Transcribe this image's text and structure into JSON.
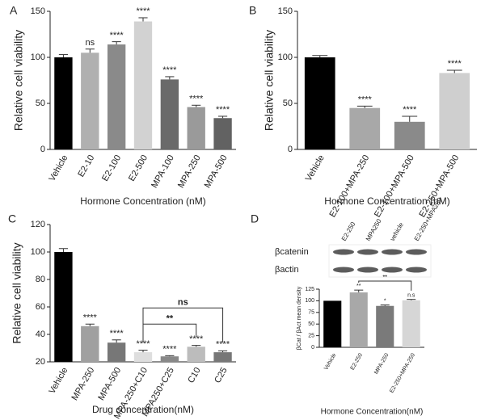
{
  "chart_data": [
    {
      "type": "bar",
      "panel_label": "A",
      "y_label": "Relative cell viability",
      "x_label": "Hormone Concentration (nM)",
      "categories": [
        "Vehicle",
        "E2-10",
        "E2-100",
        "E2-500",
        "MPA-100",
        "MPA-250",
        "MPA-500"
      ],
      "values": [
        100,
        105,
        114,
        139,
        76,
        46,
        34
      ],
      "errors": [
        3,
        4,
        3,
        4,
        3,
        2,
        2
      ],
      "colors": [
        "#000000",
        "#b0b0b0",
        "#8a8a8a",
        "#d2d2d2",
        "#6a6a6a",
        "#9a9a9a",
        "#626262"
      ],
      "annotations": [
        null,
        "ns",
        "****",
        "****",
        "****",
        "****",
        "****"
      ],
      "ylim": [
        0,
        150
      ],
      "yticks": [
        0,
        50,
        100,
        150
      ]
    },
    {
      "type": "bar",
      "panel_label": "B",
      "y_label": "Relative cell viability",
      "x_label": "Hormone Concentration (nM)",
      "categories": [
        "Vehicle",
        "E2-100+MPA-250",
        "E2-100+MPA-500",
        "E2-250+MPA-500"
      ],
      "values": [
        100,
        45,
        30,
        83
      ],
      "errors": [
        2,
        2,
        6,
        3
      ],
      "colors": [
        "#000000",
        "#a8a8a8",
        "#8a8a8a",
        "#cfcfcf"
      ],
      "annotations": [
        null,
        "****",
        "****",
        "****"
      ],
      "ylim": [
        0,
        150
      ],
      "yticks": [
        0,
        50,
        100,
        150
      ]
    },
    {
      "type": "bar",
      "panel_label": "C",
      "y_label": "Relative cell viability",
      "x_label": "Drug concentration(nM)",
      "categories": [
        "Vehicle",
        "MPA-250",
        "MPA-500",
        "MPA-250+C10",
        "MPA250+C25",
        "C10",
        "C25"
      ],
      "values": [
        100,
        46,
        34,
        27,
        24,
        31,
        27
      ],
      "errors": [
        2.5,
        1.5,
        2,
        1.5,
        0.5,
        1,
        1
      ],
      "colors": [
        "#000000",
        "#a0a0a0",
        "#777777",
        "#dedede",
        "#888888",
        "#bcbcbc",
        "#777777"
      ],
      "annotations": [
        null,
        "****",
        "****",
        "****",
        "****",
        "****",
        "****"
      ],
      "brackets": [
        {
          "from": 3,
          "to": 6,
          "label": "ns"
        },
        {
          "from": 3,
          "to": 5,
          "label": "**"
        }
      ],
      "ylim": [
        20,
        120
      ],
      "yticks": [
        20,
        40,
        60,
        80,
        100,
        120
      ]
    },
    {
      "type": "bar",
      "panel_label": "D",
      "y_label": "βCat / βAct mean density",
      "x_label": "Hormone Concentration(nM)",
      "categories": [
        "Vehicle",
        "E2-250",
        "MPA-250",
        "E2-250+MPA-250"
      ],
      "values": [
        100,
        118,
        89,
        101
      ],
      "errors": [
        null,
        5,
        2,
        2
      ],
      "colors": [
        "#000000",
        "#a8a8a8",
        "#7a7a7a",
        "#d6d6d6"
      ],
      "annotations": [
        null,
        "**",
        "*",
        "n.s"
      ],
      "brackets": [
        {
          "from": 1,
          "to": 3,
          "label": "**"
        }
      ],
      "blot": {
        "lanes": [
          "E2-250",
          "MPA250",
          "vehicle",
          "E2-250+MPA250"
        ],
        "rows": [
          "βcatenin",
          "βactin"
        ]
      },
      "ylim": [
        0,
        125
      ],
      "yticks": [
        0,
        25,
        50,
        75,
        100,
        125
      ]
    }
  ]
}
